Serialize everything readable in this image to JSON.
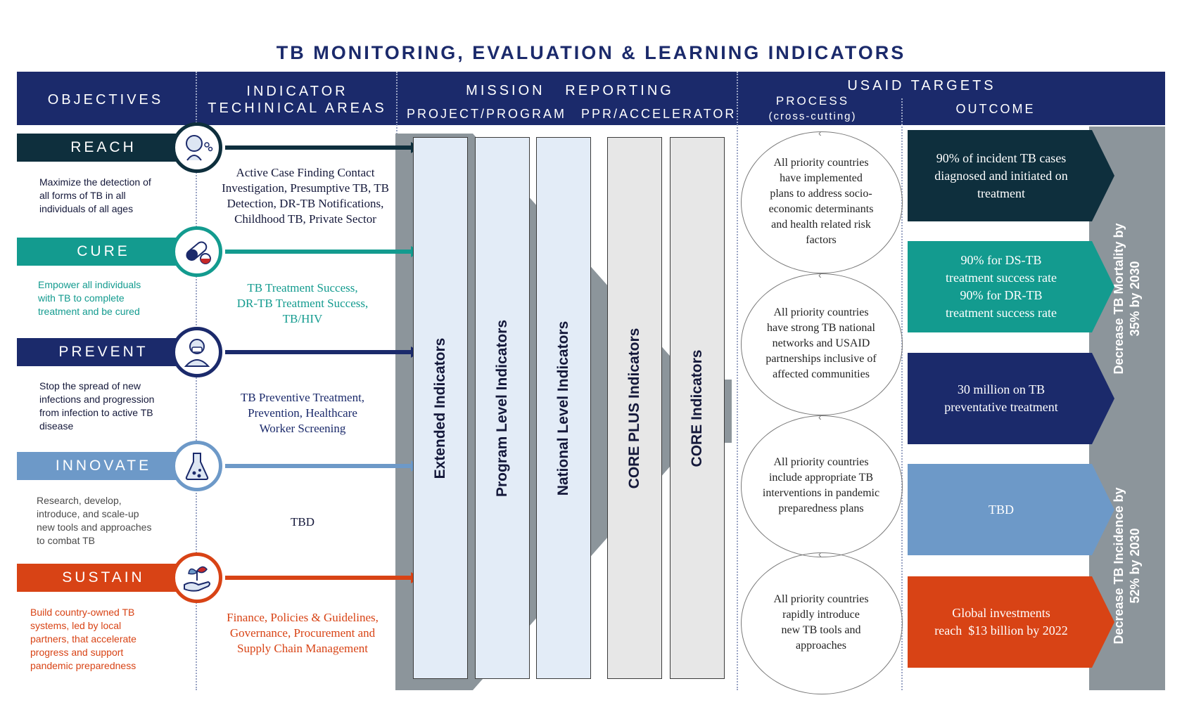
{
  "title": "TB MONITORING, EVALUATION & LEARNING INDICATORS",
  "header": {
    "objectives": "OBJECTIVES",
    "tech_line1": "INDICATOR",
    "tech_line2": "TECHINICAL AREAS",
    "mission": "MISSION   REPORTING",
    "project": "PROJECT/PROGRAM",
    "ppr": "PPR/ACCELERATOR",
    "usaid": "USAID TARGETS",
    "process": "PROCESS",
    "process_sub": "(cross-cutting)",
    "outcome": "OUTCOME"
  },
  "colors": {
    "navy": "#1b2a6b",
    "reach": "#0e2f3d",
    "cure": "#139b8f",
    "prevent": "#1b2a6b",
    "innovate": "#6d99c8",
    "sustain": "#d84315",
    "grey_band": "#8c959b",
    "pill_blue": "#e3ecf7",
    "pill_grey": "#e7e7e7"
  },
  "objectives": [
    {
      "label": "REACH",
      "icon": "cough-person-icon",
      "description_lines": [
        "Maximize the detection of",
        "all forms of TB in all",
        "individuals of all ages"
      ],
      "tech_lines": [
        "Active Case Finding Contact",
        "Investigation, Presumptive TB, TB",
        "Detection, DR-TB Notifications,",
        "Childhood TB, Private Sector"
      ]
    },
    {
      "label": "CURE",
      "icon": "capsule-pill-icon",
      "description_lines": [
        "Empower all individuals",
        "with TB to complete",
        "treatment and be cured"
      ],
      "tech_lines": [
        "TB Treatment Success,",
        "DR-TB Treatment Success,",
        "TB/HIV"
      ]
    },
    {
      "label": "PREVENT",
      "icon": "health-worker-mask-icon",
      "description_lines": [
        "Stop the spread of new",
        "infections and progression",
        "from infection to active TB",
        "disease"
      ],
      "tech_lines": [
        "TB Preventive Treatment,",
        "Prevention, Healthcare",
        "Worker Screening"
      ]
    },
    {
      "label": "INNOVATE",
      "icon": "lab-flask-icon",
      "description_lines": [
        "Research, develop,",
        "introduce, and scale-up",
        "new tools and approaches",
        "to combat TB"
      ],
      "tech_lines": [
        "TBD"
      ]
    },
    {
      "label": "SUSTAIN",
      "icon": "hand-plant-icon",
      "description_lines": [
        "Build country-owned TB",
        "systems, led by local",
        "partners, that accelerate",
        "progress and support",
        "pandemic preparedness"
      ],
      "tech_lines": [
        "Finance, Policies & Guidelines,",
        "Governance, Procurement and",
        "Supply Chain Management"
      ]
    }
  ],
  "indicators": [
    "Extended Indicators",
    "Program Level Indicators",
    "National Level Indicators",
    "CORE  PLUS Indicators",
    "CORE Indicators"
  ],
  "process": [
    {
      "lines": [
        "All priority countries",
        "have implemented",
        "plans to address socio-",
        "economic determinants",
        "and health related risk",
        "factors"
      ]
    },
    {
      "lines": [
        "All priority countries",
        "have strong TB national",
        "networks and USAID",
        "partnerships inclusive of",
        "affected communities"
      ]
    },
    {
      "lines": [
        "All priority countries",
        "include appropriate TB",
        "interventions in pandemic",
        "preparedness plans"
      ]
    },
    {
      "lines": [
        "All priority countries",
        "rapidly introduce",
        "new TB tools and",
        "approaches"
      ]
    }
  ],
  "outcomes": [
    {
      "lines": [
        "90% of incident TB cases",
        "diagnosed and initiated on",
        "treatment"
      ]
    },
    {
      "lines": [
        "90% for DS-TB",
        "treatment success rate",
        "90% for DR-TB",
        "treatment success rate"
      ]
    },
    {
      "lines": [
        "30 million on TB",
        "preventative treatment"
      ]
    },
    {
      "lines": [
        "TBD"
      ]
    },
    {
      "lines": [
        "Global investments",
        "reach  $13 billion by 2022"
      ]
    }
  ],
  "side_targets": [
    {
      "lines": [
        "Decrease TB Mortality by",
        "35% by 2030"
      ]
    },
    {
      "lines": [
        "Decrease TB Incidence by",
        "52% by 2030"
      ]
    }
  ]
}
